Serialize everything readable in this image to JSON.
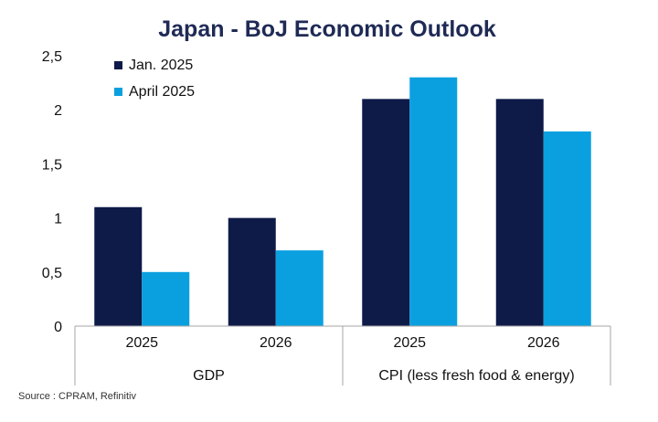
{
  "chart_data": {
    "type": "bar",
    "title": "Japan - BoJ Economic Outlook",
    "groups": [
      {
        "label": "GDP",
        "categories": [
          "2025",
          "2026"
        ]
      },
      {
        "label": "CPI (less fresh food & energy)",
        "categories": [
          "2025",
          "2026"
        ]
      }
    ],
    "series": [
      {
        "name": "Jan. 2025",
        "color": "#0e1a48",
        "values": [
          1.1,
          1.0,
          2.1,
          2.1
        ]
      },
      {
        "name": "April 2025",
        "color": "#0aa0e0",
        "values": [
          0.5,
          0.7,
          2.3,
          1.8
        ]
      }
    ],
    "yticks": [
      "0",
      "0,5",
      "1",
      "1,5",
      "2",
      "2,5"
    ],
    "ytick_values": [
      0,
      0.5,
      1,
      1.5,
      2,
      2.5
    ],
    "ylim": [
      0,
      2.5
    ],
    "legend_position": "top-left",
    "grid": false,
    "source": "Source : CPRAM, Refinitiv"
  }
}
